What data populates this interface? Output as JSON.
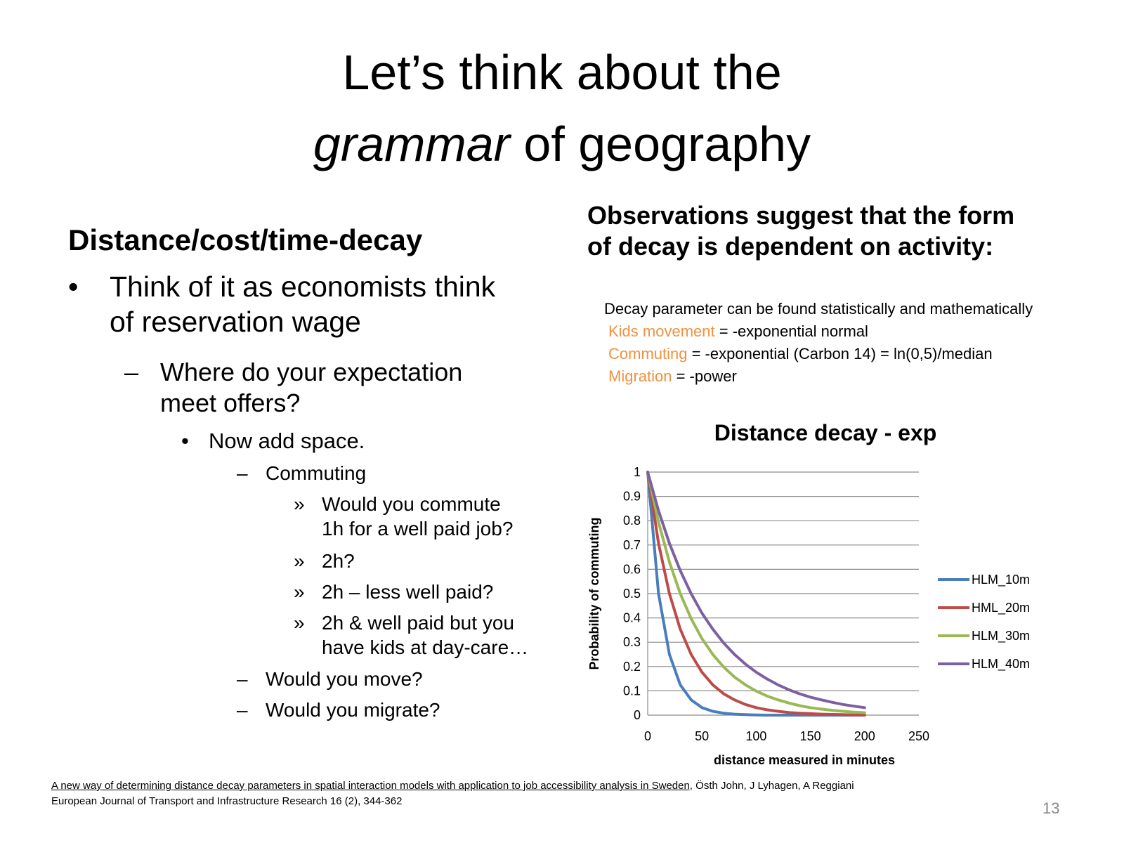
{
  "slide": {
    "title_line1": "Let’s think about the",
    "title_italic": "grammar",
    "title_line2_rest": " of geography",
    "left_heading": "Distance/cost/time-decay",
    "bullets": {
      "b1_line1": "Think of it as economists think",
      "b1_line2": "of reservation wage",
      "b2_line1": "Where do your expectation",
      "b2_line2": "meet offers?",
      "b3": "Now add space.",
      "b4": "Commuting",
      "b5_line1": "Would you commute",
      "b5_line2": "1h for a well paid job?",
      "b6": "2h?",
      "b7": "2h – less well paid?",
      "b8_line1": "2h & well paid but you",
      "b8_line2": "have kids at day-care…",
      "b9": "Would you move?",
      "b10": "Would you migrate?"
    },
    "bullet_symbols": {
      "dot": "•",
      "dash": "–",
      "guillemet": "»"
    },
    "right_heading_line1": "Observations suggest that the form",
    "right_heading_line2": "of decay is dependent on activity:",
    "decay": {
      "intro": "Decay parameter can be found statistically and mathematically",
      "kids_label": "Kids movement",
      "kids_text": " = -exponential normal",
      "commuting_label": "Commuting",
      "commuting_text": " = -exponential (Carbon 14) = ln(0,5)/median",
      "migration_label": "Migration",
      "migration_text": " = -power"
    },
    "highlight_color": "#f0913f",
    "reference_underlined": "A new way of determining distance decay parameters in spatial interaction models with application to job accessibility analysis in Sweden,",
    "reference_authors": " Östh John, J Lyhagen, A Reggiani",
    "reference_line2": "European Journal of Transport and Infrastructure Research 16 (2), 344-362",
    "page_number": "13"
  },
  "chart_data": {
    "type": "line",
    "title": "Distance decay - exp",
    "xlabel": "distance measured in minutes",
    "ylabel": "Probability of commuting",
    "xlim": [
      0,
      250
    ],
    "ylim": [
      0,
      1
    ],
    "x_ticks": [
      "0",
      "50",
      "100",
      "150",
      "200",
      "250"
    ],
    "y_ticks": [
      "0",
      "0.1",
      "0.2",
      "0.3",
      "0.4",
      "0.5",
      "0.6",
      "0.7",
      "0.8",
      "0.9",
      "1"
    ],
    "grid": "horizontal",
    "legend_position": "right",
    "x": [
      0,
      10,
      20,
      30,
      40,
      50,
      60,
      70,
      80,
      90,
      100,
      110,
      120,
      130,
      140,
      150,
      160,
      170,
      180,
      190,
      200
    ],
    "series": [
      {
        "name": "HLM_10m",
        "color": "#4a7ebb",
        "values": [
          1,
          0.5,
          0.25,
          0.125,
          0.063,
          0.031,
          0.016,
          0.008,
          0.004,
          0.002,
          0.001,
          0,
          0,
          0,
          0,
          0,
          0,
          0,
          0,
          0,
          0
        ]
      },
      {
        "name": "HML_20m",
        "color": "#be4b48",
        "values": [
          1,
          0.707,
          0.5,
          0.354,
          0.25,
          0.177,
          0.125,
          0.088,
          0.063,
          0.044,
          0.031,
          0.022,
          0.016,
          0.011,
          0.008,
          0.006,
          0.004,
          0.003,
          0.002,
          0.001,
          0.001
        ]
      },
      {
        "name": "HLM_30m",
        "color": "#98b954",
        "values": [
          1,
          0.794,
          0.63,
          0.5,
          0.397,
          0.315,
          0.25,
          0.198,
          0.157,
          0.125,
          0.099,
          0.079,
          0.063,
          0.05,
          0.039,
          0.031,
          0.025,
          0.02,
          0.016,
          0.012,
          0.01
        ]
      },
      {
        "name": "HLM_40m",
        "color": "#7d60a0",
        "values": [
          1,
          0.841,
          0.707,
          0.595,
          0.5,
          0.42,
          0.354,
          0.297,
          0.25,
          0.21,
          0.177,
          0.149,
          0.125,
          0.105,
          0.088,
          0.074,
          0.063,
          0.053,
          0.044,
          0.037,
          0.031
        ]
      }
    ]
  }
}
